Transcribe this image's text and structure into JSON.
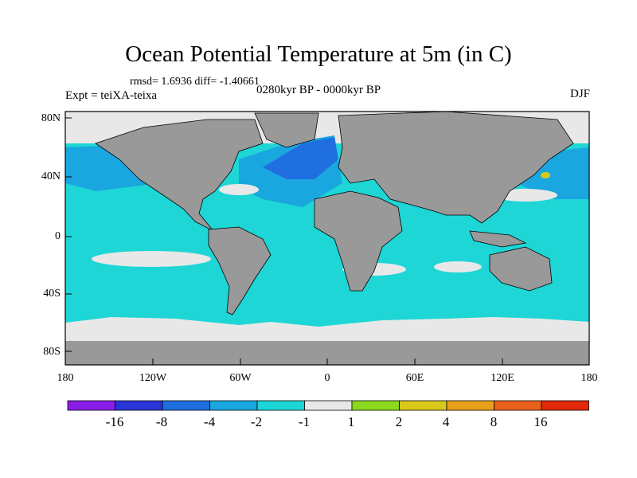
{
  "title": "Ocean Potential Temperature at 5m (in C)",
  "stats_text": "rmsd= 1.6936 diff= -1.40661",
  "experiment_text": "Expt = teiXA-teixa",
  "period_text": "0280kyr BP - 0000kyr BP",
  "season_text": "DJF",
  "lat_labels": [
    "80N",
    "40N",
    "0",
    "40S",
    "80S"
  ],
  "lon_labels": [
    "180",
    "120W",
    "60W",
    "0",
    "60E",
    "120E",
    "180"
  ],
  "colorbar": {
    "labels": [
      "-16",
      "-8",
      "-4",
      "-2",
      "-1",
      "1",
      "2",
      "4",
      "8",
      "16"
    ],
    "colors": [
      "#8a1ee6",
      "#2a35d8",
      "#1f6fe0",
      "#1aa6df",
      "#1ed6d6",
      "#e8e8e8",
      "#8cd81e",
      "#d8c81a",
      "#e8a01a",
      "#e8601a",
      "#e02a0a"
    ]
  },
  "colors": {
    "land": "#999999",
    "ocean_base": "#1ed6d6",
    "ice": "#e8e8e8"
  }
}
